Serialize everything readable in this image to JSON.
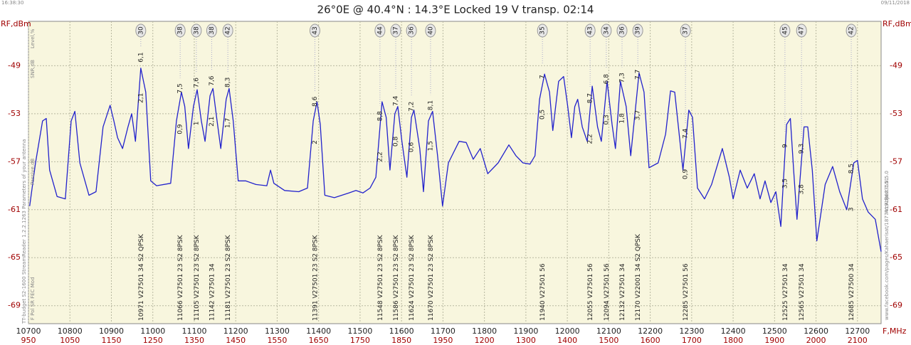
{
  "chart_data": {
    "type": "line",
    "title": "26°0E @ 40.4°N : 14.3°E Locked 19 V transp. 02:14",
    "time": "16:38:30",
    "date": "09/11/2018",
    "y_label": "RF,dBm",
    "x_label": "F,MHz",
    "side_labels": [
      "Level,%",
      "SNR,dB",
      "Passive,dB",
      "F  Pol  SR  FEC  Mod"
    ],
    "left_edge_text": "TT-budget S2-1600     StreamReader 1.2.2.1263     Parameters of your antenna",
    "right_edge_texts": [
      "ArcAdjust 1.0.5.0",
      "www.facebook.com/pages/Kahaerisat/187741918633551"
    ],
    "xlim": [
      10700,
      12757
    ],
    "ylim": [
      -70.5,
      -45.3
    ],
    "xticks": [
      10700,
      10800,
      10900,
      11000,
      11100,
      11200,
      11300,
      11400,
      11500,
      11600,
      11700,
      11800,
      11900,
      12000,
      12100,
      12200,
      12300,
      12400,
      12500,
      12600,
      12700
    ],
    "if_labels": [
      950,
      1050,
      1150,
      1250,
      1350,
      1450,
      1550,
      1650,
      1750,
      1850,
      1950,
      1200,
      1300,
      1400,
      1500,
      1600,
      1700,
      1800,
      1900,
      2000,
      2100
    ],
    "yticks": [
      -49,
      -53,
      -57,
      -61,
      -65,
      -69
    ],
    "grid": true,
    "series": [
      {
        "name": "Spectrum",
        "color": "#2222cc",
        "x": [
          10703,
          10717,
          10734,
          10743,
          10751,
          10769,
          10789,
          10803,
          10812,
          10824,
          10846,
          10863,
          10880,
          10897,
          10906,
          10915,
          10927,
          10940,
          10949,
          10958,
          10971,
          10983,
          10995,
          11009,
          11043,
          11057,
          11069,
          11077,
          11086,
          11098,
          11107,
          11117,
          11126,
          11138,
          11145,
          11155,
          11164,
          11177,
          11184,
          11194,
          11206,
          11224,
          11249,
          11275,
          11284,
          11292,
          11318,
          11352,
          11373,
          11387,
          11396,
          11404,
          11415,
          11438,
          11473,
          11490,
          11507,
          11524,
          11538,
          11553,
          11563,
          11572,
          11584,
          11591,
          11601,
          11613,
          11624,
          11630,
          11644,
          11653,
          11665,
          11675,
          11687,
          11699,
          11713,
          11739,
          11756,
          11773,
          11790,
          11808,
          11833,
          11859,
          11876,
          11893,
          11910,
          11922,
          11933,
          11945,
          11957,
          11965,
          11979,
          11991,
          12001,
          12010,
          12018,
          12025,
          12036,
          12048,
          12060,
          12073,
          12082,
          12096,
          12108,
          12116,
          12128,
          12142,
          12153,
          12173,
          12185,
          12197,
          12219,
          12237,
          12249,
          12259,
          12268,
          12279,
          12293,
          12302,
          12314,
          12331,
          12348,
          12374,
          12391,
          12400,
          12417,
          12434,
          12451,
          12465,
          12477,
          12491,
          12503,
          12515,
          12529,
          12538,
          12546,
          12554,
          12571,
          12580,
          12591,
          12602,
          12622,
          12640,
          12657,
          12674,
          12691,
          12700,
          12712,
          12726,
          12743,
          12757
        ],
        "values": [
          -60.7,
          -57.1,
          -53.6,
          -53.4,
          -57.7,
          -59.9,
          -60.1,
          -53.6,
          -52.8,
          -57.1,
          -59.8,
          -59.5,
          -54.1,
          -52.3,
          -53.6,
          -55.0,
          -55.9,
          -54.1,
          -53.0,
          -55.3,
          -49.2,
          -51.2,
          -58.6,
          -59.0,
          -58.8,
          -53.6,
          -51.2,
          -52.4,
          -55.9,
          -52.4,
          -51.0,
          -53.6,
          -55.3,
          -51.5,
          -50.9,
          -53.6,
          -55.9,
          -51.8,
          -50.9,
          -53.6,
          -58.6,
          -58.6,
          -58.9,
          -59.0,
          -57.7,
          -58.8,
          -59.4,
          -59.5,
          -59.2,
          -53.6,
          -52.0,
          -53.9,
          -59.8,
          -60.0,
          -59.6,
          -59.4,
          -59.6,
          -59.2,
          -58.3,
          -52.0,
          -53.3,
          -57.7,
          -53.0,
          -52.4,
          -55.3,
          -58.3,
          -53.3,
          -52.7,
          -55.9,
          -59.5,
          -53.6,
          -52.8,
          -56.5,
          -60.7,
          -57.1,
          -55.3,
          -55.4,
          -56.8,
          -55.9,
          -58.0,
          -57.1,
          -55.6,
          -56.5,
          -57.1,
          -57.2,
          -56.5,
          -51.8,
          -49.7,
          -51.2,
          -54.4,
          -50.3,
          -49.9,
          -52.4,
          -55.0,
          -52.4,
          -51.8,
          -54.1,
          -55.3,
          -50.7,
          -54.1,
          -55.3,
          -50.3,
          -53.9,
          -55.9,
          -50.3,
          -52.4,
          -56.5,
          -49.6,
          -51.2,
          -57.5,
          -57.1,
          -54.7,
          -51.1,
          -51.2,
          -54.1,
          -57.7,
          -52.7,
          -53.3,
          -59.2,
          -60.1,
          -58.9,
          -55.9,
          -58.3,
          -60.1,
          -57.7,
          -59.2,
          -58.0,
          -60.1,
          -58.6,
          -60.4,
          -59.5,
          -62.4,
          -53.9,
          -53.4,
          -57.7,
          -61.8,
          -54.1,
          -54.1,
          -57.7,
          -63.6,
          -58.9,
          -57.4,
          -59.5,
          -61.0,
          -57.1,
          -56.9,
          -60.1,
          -61.2,
          -61.8,
          -64.5
        ]
      }
    ],
    "transponders": [
      {
        "freq": 10971,
        "params": "V27501 34 S2 QPSK",
        "level": 30,
        "snr": "6,1",
        "margin": "2,1"
      },
      {
        "freq": 11066,
        "params": "V27501 23 S2 8PSK",
        "level": 38,
        "snr": "7,5",
        "margin": "0,9"
      },
      {
        "freq": 11105,
        "params": "V27501 23 S2 8PSK",
        "level": 38,
        "snr": "7,6",
        "margin": "1"
      },
      {
        "freq": 11142,
        "params": "V27501 34",
        "level": 38,
        "snr": "7,6",
        "margin": "2,1"
      },
      {
        "freq": 11181,
        "params": "V27501 23 S2 8PSK",
        "level": 42,
        "snr": "8,3",
        "margin": "1,7"
      },
      {
        "freq": 11391,
        "params": "V27501 23 S2 8PSK",
        "level": 43,
        "snr": "8,6",
        "margin": "2"
      },
      {
        "freq": 11548,
        "params": "V27501 23 S2 8PSK",
        "level": 44,
        "snr": "8,8",
        "margin": "2,2"
      },
      {
        "freq": 11586,
        "params": "V27501 23 S2 8PSK",
        "level": 37,
        "snr": "7,4",
        "margin": "0,8"
      },
      {
        "freq": 11624,
        "params": "V27501 23 S2 8PSK",
        "level": 36,
        "snr": "7,2",
        "margin": "0,6"
      },
      {
        "freq": 11670,
        "params": "V27501 23 S2 8PSK",
        "level": 40,
        "snr": "8,1",
        "margin": "1,5"
      },
      {
        "freq": 11940,
        "params": "V27501 56",
        "level": 35,
        "snr": "7",
        "margin": "0,5"
      },
      {
        "freq": 12055,
        "params": "V27501 56",
        "level": 43,
        "snr": "8,7",
        "margin": "2,2"
      },
      {
        "freq": 12094,
        "params": "V27501 56",
        "level": 34,
        "snr": "6,8",
        "margin": "0,3"
      },
      {
        "freq": 12132,
        "params": "V27501 34",
        "level": 36,
        "snr": "7,3",
        "margin": "1,8"
      },
      {
        "freq": 12170,
        "params": "V22001 34 S2 QPSK",
        "level": 39,
        "snr": "7,7",
        "margin": "3,7"
      },
      {
        "freq": 12285,
        "params": "V27501 56",
        "level": 37,
        "snr": "7,4",
        "margin": "0,9"
      },
      {
        "freq": 12525,
        "params": "V27501 34",
        "level": 45,
        "snr": "9",
        "margin": "3,5"
      },
      {
        "freq": 12565,
        "params": "V27501 34",
        "level": 47,
        "snr": "9,3",
        "margin": "3,8"
      },
      {
        "freq": 12685,
        "params": "V27500 34",
        "level": 42,
        "snr": "8,5",
        "margin": "3"
      }
    ]
  }
}
